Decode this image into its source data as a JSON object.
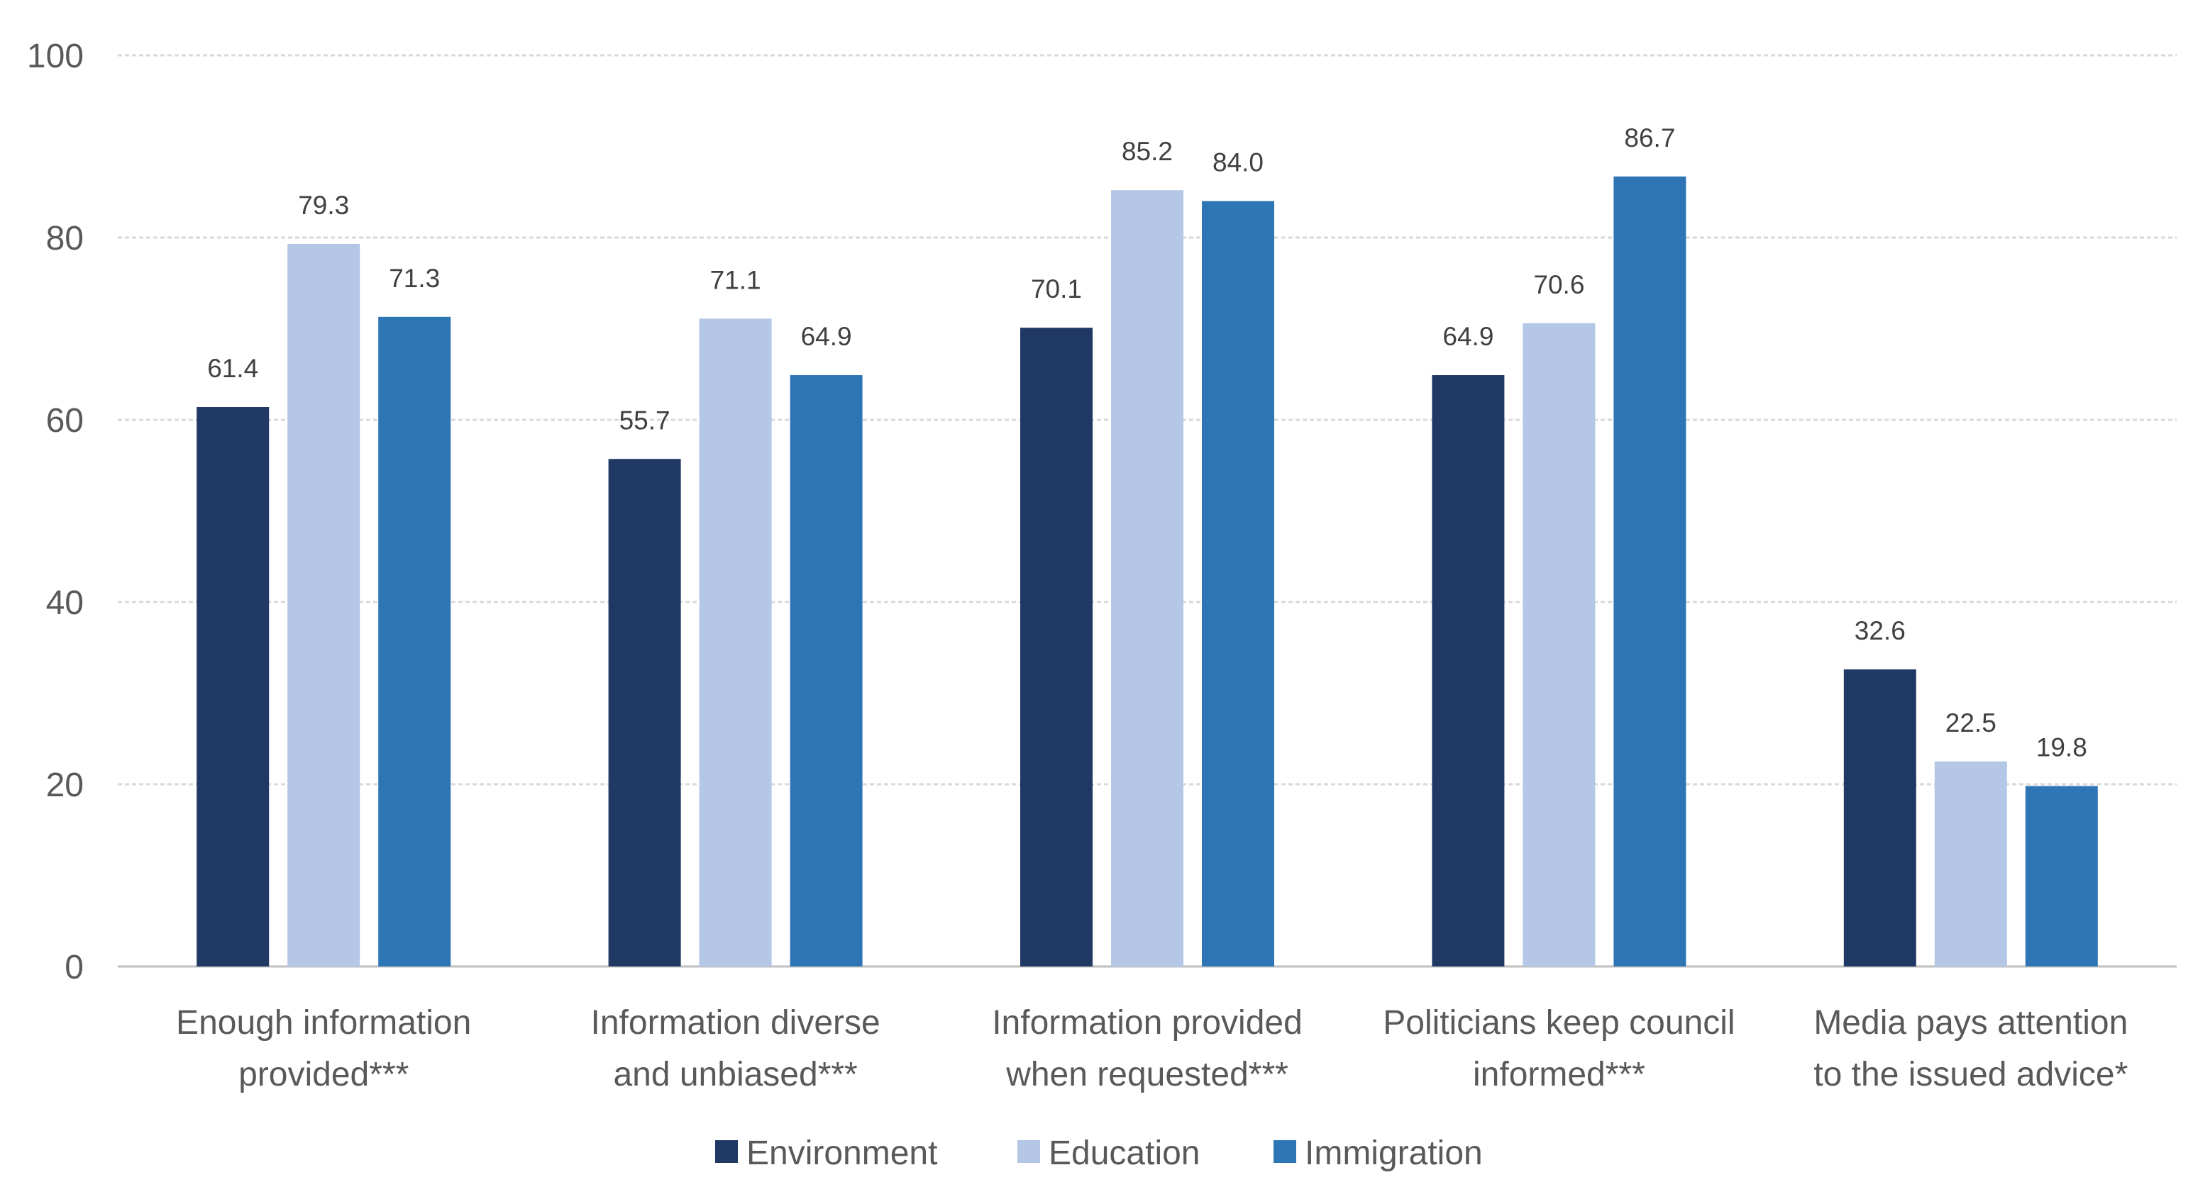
{
  "chart_data": {
    "type": "bar",
    "categories": [
      [
        "Enough information",
        "provided***"
      ],
      [
        "Information diverse",
        "and unbiased***"
      ],
      [
        "Information provided",
        "when requested***"
      ],
      [
        "Politicians keep council",
        "informed***"
      ],
      [
        "Media pays attention",
        "to the issued advice*"
      ]
    ],
    "series": [
      {
        "name": "Environment",
        "color": "#203864",
        "values": [
          61.4,
          55.7,
          70.1,
          64.9,
          32.6
        ]
      },
      {
        "name": "Education",
        "color": "#b4c7e7",
        "values": [
          79.3,
          71.1,
          85.2,
          70.6,
          22.5
        ]
      },
      {
        "name": "Immigration",
        "color": "#2e75b6",
        "values": [
          71.3,
          64.9,
          84.0,
          86.7,
          19.8
        ]
      }
    ],
    "ylim": [
      0,
      100
    ],
    "yticks": [
      0,
      20,
      40,
      60,
      80,
      100
    ],
    "grid": true,
    "legend": "bottom",
    "title": "",
    "xlabel": "",
    "ylabel": ""
  }
}
